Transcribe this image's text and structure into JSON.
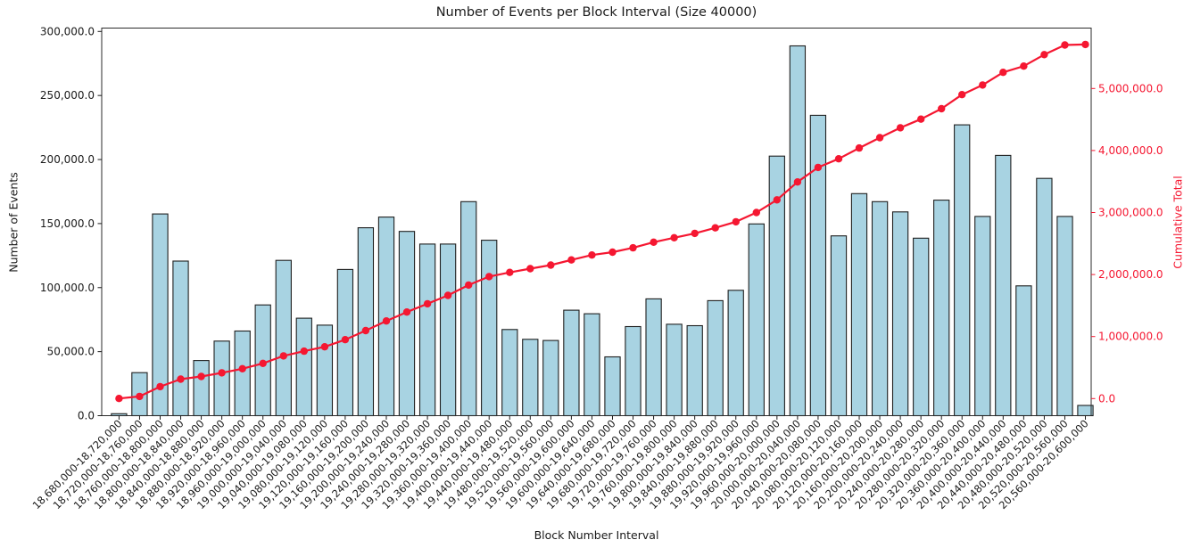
{
  "chart_data": {
    "type": "bar",
    "title": "Number of Events per Block Interval (Size 40000)",
    "xlabel": "Block Number Interval",
    "ylabel_left": "Number of Events",
    "ylabel_right": "Cumulative Total",
    "grid": false,
    "background": "#ffffff",
    "categories": [
      "18,680,000-18,720,000",
      "18,720,000-18,760,000",
      "18,760,000-18,800,000",
      "18,800,000-18,840,000",
      "18,840,000-18,880,000",
      "18,880,000-18,920,000",
      "18,920,000-18,960,000",
      "18,960,000-19,000,000",
      "19,000,000-19,040,000",
      "19,040,000-19,080,000",
      "19,080,000-19,120,000",
      "19,120,000-19,160,000",
      "19,160,000-19,200,000",
      "19,200,000-19,240,000",
      "19,240,000-19,280,000",
      "19,280,000-19,320,000",
      "19,320,000-19,360,000",
      "19,360,000-19,400,000",
      "19,400,000-19,440,000",
      "19,440,000-19,480,000",
      "19,480,000-19,520,000",
      "19,520,000-19,560,000",
      "19,560,000-19,600,000",
      "19,600,000-19,640,000",
      "19,640,000-19,680,000",
      "19,680,000-19,720,000",
      "19,720,000-19,760,000",
      "19,760,000-19,800,000",
      "19,800,000-19,840,000",
      "19,840,000-19,880,000",
      "19,880,000-19,920,000",
      "19,920,000-19,960,000",
      "19,960,000-20,000,000",
      "20,000,000-20,040,000",
      "20,040,000-20,080,000",
      "20,080,000-20,120,000",
      "20,120,000-20,160,000",
      "20,160,000-20,200,000",
      "20,200,000-20,240,000",
      "20,240,000-20,280,000",
      "20,280,000-20,320,000",
      "20,320,000-20,360,000",
      "20,360,000-20,400,000",
      "20,400,000-20,440,000",
      "20,440,000-20,480,000",
      "20,480,000-20,520,000",
      "20,520,000-20,560,000",
      "20,560,000-20,600,000"
    ],
    "series": [
      {
        "name": "Number of Events",
        "type": "bar",
        "axis": "left",
        "color": "#a8d3e2",
        "edge_color": "#1f1f1f",
        "values": [
          1500,
          33600,
          157500,
          120700,
          43100,
          58200,
          66100,
          86500,
          121300,
          76100,
          70700,
          114200,
          146700,
          155100,
          143900,
          134000,
          134000,
          167100,
          137000,
          67300,
          59600,
          58700,
          82400,
          79600,
          45900,
          69600,
          91200,
          71400,
          70300,
          89800,
          97900,
          149700,
          202700,
          288700,
          234500,
          140400,
          173400,
          167100,
          159100,
          138600,
          168300,
          227100,
          155600,
          203200,
          101400,
          185300,
          155600,
          8000
        ]
      },
      {
        "name": "Cumulative Total",
        "type": "line",
        "axis": "right",
        "color": "#f51731",
        "marker": "o",
        "values": [
          1500,
          35100,
          192600,
          313300,
          356400,
          414600,
          480700,
          567200,
          688500,
          764600,
          835300,
          949500,
          1096200,
          1251300,
          1395200,
          1529200,
          1663200,
          1830300,
          1967300,
          2034600,
          2094200,
          2152900,
          2235300,
          2314900,
          2360800,
          2430400,
          2521600,
          2593000,
          2663300,
          2753100,
          2851000,
          3000700,
          3203400,
          3492100,
          3726600,
          3867000,
          4040400,
          4207500,
          4366600,
          4505200,
          4673500,
          4900600,
          5056200,
          5259400,
          5360800,
          5546100,
          5701700,
          5709700
        ]
      }
    ],
    "left_axis": {
      "color": "#1a1a1a",
      "tick_labels": [
        "0.0",
        "50,000.0",
        "100,000.0",
        "150,000.0",
        "200,000.0",
        "250,000.0",
        "300,000.0"
      ]
    },
    "right_axis": {
      "color": "#f51731",
      "tick_labels": [
        "0.0",
        "1,000,000.0",
        "2,000,000.0",
        "3,000,000.0",
        "4,000,000.0",
        "5,000,000.0"
      ]
    }
  }
}
